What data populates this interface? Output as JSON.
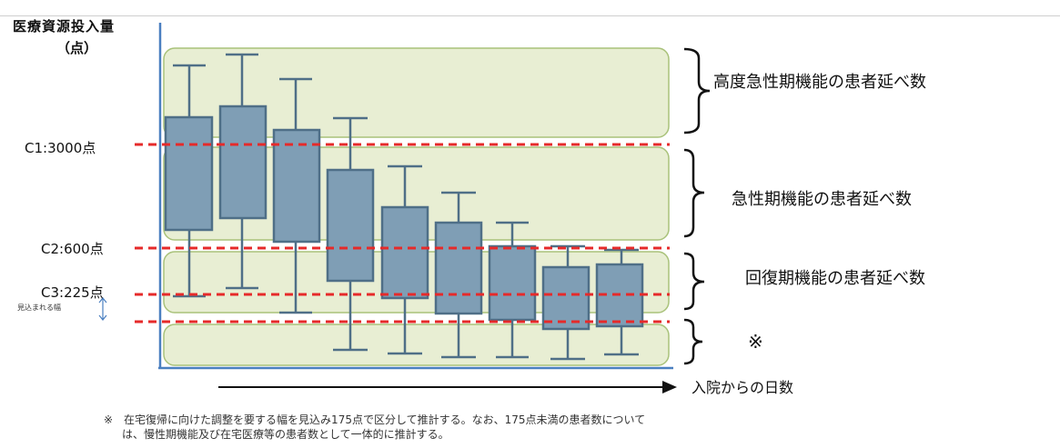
{
  "axis": {
    "y_title": "医療資源投入量",
    "y_unit": "（点）",
    "x_label": "入院からの日数",
    "range_note": "見込まれる幅"
  },
  "thresholds": [
    {
      "label": "C1:3000点",
      "value": 3000
    },
    {
      "label": "C2:600点",
      "value": 600
    },
    {
      "label": "C3:225点",
      "value": 225
    }
  ],
  "bands": [
    {
      "label": "高度急性期機能の患者延べ数"
    },
    {
      "label": "急性期機能の患者延べ数"
    },
    {
      "label": "回復期機能の患者延べ数"
    },
    {
      "label": "※"
    }
  ],
  "footnote": {
    "line1": "※　在宅復帰に向けた調整を要する幅を見込み175点で区分して推計する。なお、175点未満の患者数について",
    "line2": "は、慢性期機能及び在宅医療等の患者数として一体的に推計する。"
  },
  "colors": {
    "band_fill": "#e8eed3",
    "band_stroke": "#a9c27a",
    "box_fill": "#7f9eb5",
    "box_stroke": "#4f6f87",
    "threshold_line": "#e62a2a",
    "axis": "#4a7fc0"
  },
  "icons": [
    "curly-brace-icon",
    "arrow-right-icon",
    "double-arrow-icon"
  ]
}
